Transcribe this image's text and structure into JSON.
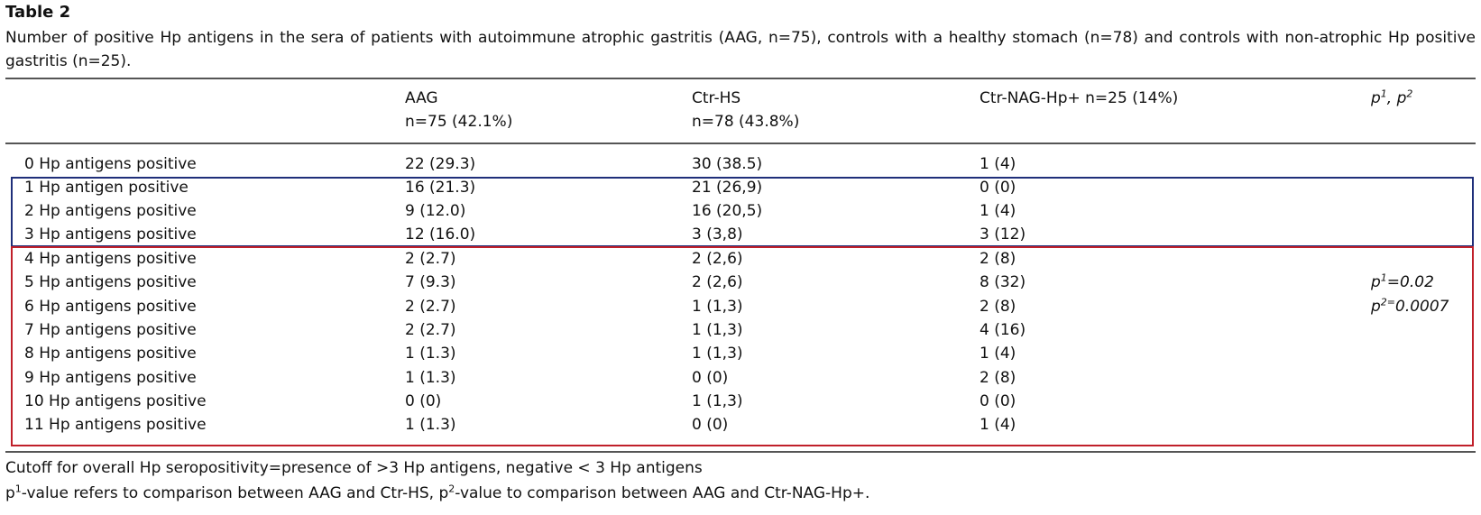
{
  "table": {
    "label": "Table 2",
    "caption": "Number of positive Hp antigens in the sera of patients with autoimmune atrophic gastritis (AAG, n=75), controls with a healthy stomach (n=78) and controls with non-atrophic Hp positive gastritis (n=25).",
    "headers": {
      "aag_line1": "AAG",
      "aag_line2": "n=75 (42.1%)",
      "ctrhs_line1": "Ctr-HS",
      "ctrhs_line2": "n=78 (43.8%)",
      "ctrnag": "Ctr-NAG-Hp+ n=25 (14%)",
      "p_header_p1": "p",
      "p_header_sup1": "1",
      "p_header_sep": ", p",
      "p_header_sup2": "2"
    },
    "rows": [
      {
        "label": "0 Hp antigens positive",
        "aag": "22 (29.3)",
        "ctrhs": "30 (38.5)",
        "ctrnag": "1 (4)"
      },
      {
        "label": "1 Hp antigen positive",
        "aag": "16 (21.3)",
        "ctrhs": "21 (26,9)",
        "ctrnag": "0 (0)"
      },
      {
        "label": "2 Hp antigens positive",
        "aag": "9 (12.0)",
        "ctrhs": "16 (20,5)",
        "ctrnag": "1 (4)"
      },
      {
        "label": "3 Hp antigens positive",
        "aag": "12 (16.0)",
        "ctrhs": "3 (3,8)",
        "ctrnag": "3 (12)"
      },
      {
        "label": "4 Hp antigens positive",
        "aag": "2 (2.7)",
        "ctrhs": "2 (2,6)",
        "ctrnag": "2 (8)"
      },
      {
        "label": "5 Hp antigens positive",
        "aag": "7 (9.3)",
        "ctrhs": "2 (2,6)",
        "ctrnag": "8 (32)"
      },
      {
        "label": "6 Hp antigens positive",
        "aag": "2 (2.7)",
        "ctrhs": "1 (1,3)",
        "ctrnag": "2 (8)"
      },
      {
        "label": "7 Hp antigens positive",
        "aag": "2 (2.7)",
        "ctrhs": "1 (1,3)",
        "ctrnag": "4 (16)"
      },
      {
        "label": "8 Hp antigens positive",
        "aag": "1 (1.3)",
        "ctrhs": "1 (1,3)",
        "ctrnag": "1 (4)"
      },
      {
        "label": "9 Hp antigens positive",
        "aag": "1 (1.3)",
        "ctrhs": "0 (0)",
        "ctrnag": "2 (8)"
      },
      {
        "label": "10 Hp antigens positive",
        "aag": "0 (0)",
        "ctrhs": "1 (1,3)",
        "ctrnag": "0 (0)"
      },
      {
        "label": "11 Hp antigens positive",
        "aag": "1 (1.3)",
        "ctrhs": "0 (0)",
        "ctrnag": "1 (4)"
      }
    ],
    "pvalues": {
      "p1_p": "p",
      "p1_sup": "1",
      "p1_val": "=0.02",
      "p2_p": "p",
      "p2_sup": "2=",
      "p2_val": "0.0007"
    },
    "highlight_colors": {
      "blue_box": "#1f2f7a",
      "red_box": "#c0202a"
    },
    "footnotes": {
      "line1": "Cutoff for overall Hp seropositivity=presence of >3 Hp antigens, negative < 3 Hp antigens",
      "line2_p": "p",
      "line2_sup1": "1",
      "line2_mid": "-value refers to comparison between AAG and Ctr-HS, p",
      "line2_sup2": "2",
      "line2_end": "-value to comparison between AAG and Ctr-NAG-Hp+."
    }
  }
}
